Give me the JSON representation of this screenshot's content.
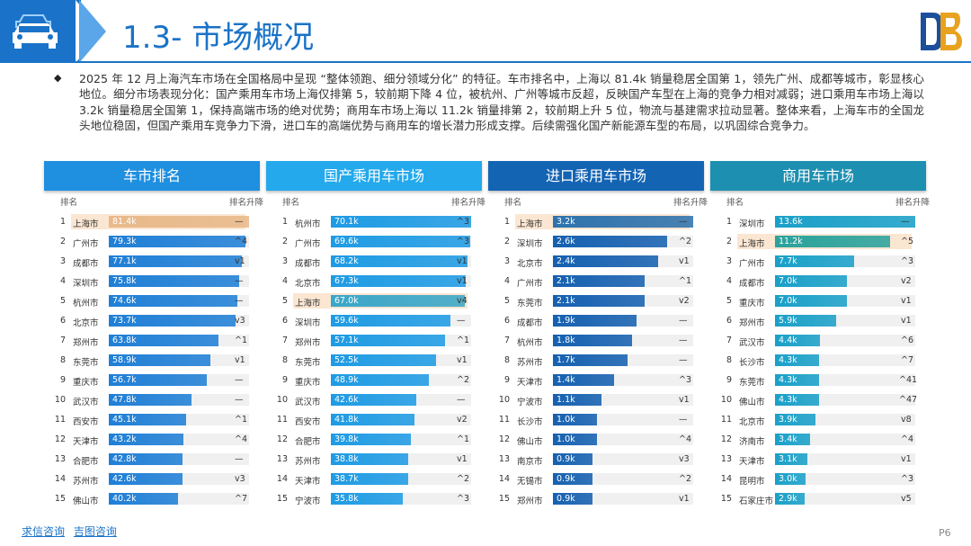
{
  "header": {
    "title": "1.3- 市场概况",
    "logo_text": "DB"
  },
  "summary": {
    "bullet": "◆",
    "text": "2025 年 12 月上海汽车市场在全国格局中呈现 “整体领跑、细分领域分化” 的特征。车市排名中，上海以 81.4k 销量稳居全国第 1，领先广州、成都等城市，彰显核心地位。细分市场表现分化：国产乘用车市场上海仅排第 5，较前期下降 4 位，被杭州、广州等城市反超，反映国产车型在上海的竞争力相对减弱；进口乘用车市场上海以 3.2k 销量稳居全国第 1，保持高端市场的绝对优势；商用车市场上海以 11.2k 销量排第 2，较前期上升 5 位，物流与基建需求拉动显著。整体来看，上海车市的全国龙头地位稳固，但国产乘用车竞争力下滑，进口车的高端优势与商用车的增长潜力形成支撑。后续需强化国产新能源车型的布局，以巩固综合竞争力。"
  },
  "colors": {
    "brand_blue": "#1a73c8",
    "highlight": "#fbe6d2"
  },
  "panels": [
    {
      "title": "车市排名",
      "head_color": "#1f8fe0",
      "bar_color": "#1f7fd6",
      "hl_bar_color": "#e8b98a",
      "col_rank": "排名",
      "col_change": "排名升降",
      "max": 81.4,
      "rows": [
        {
          "rank": "1",
          "city": "上海市",
          "label": "81.4k",
          "value": 81.4,
          "change": "—",
          "hl": true
        },
        {
          "rank": "2",
          "city": "广州市",
          "label": "79.3k",
          "value": 79.3,
          "change": "^4"
        },
        {
          "rank": "3",
          "city": "成都市",
          "label": "77.1k",
          "value": 77.1,
          "change": "v1"
        },
        {
          "rank": "4",
          "city": "深圳市",
          "label": "75.8k",
          "value": 75.8,
          "change": "—"
        },
        {
          "rank": "5",
          "city": "杭州市",
          "label": "74.6k",
          "value": 74.6,
          "change": "—"
        },
        {
          "rank": "6",
          "city": "北京市",
          "label": "73.7k",
          "value": 73.7,
          "change": "v3"
        },
        {
          "rank": "7",
          "city": "郑州市",
          "label": "63.8k",
          "value": 63.8,
          "change": "^1"
        },
        {
          "rank": "8",
          "city": "东莞市",
          "label": "58.9k",
          "value": 58.9,
          "change": "v1"
        },
        {
          "rank": "9",
          "city": "重庆市",
          "label": "56.7k",
          "value": 56.7,
          "change": "—"
        },
        {
          "rank": "10",
          "city": "武汉市",
          "label": "47.8k",
          "value": 47.8,
          "change": "—"
        },
        {
          "rank": "11",
          "city": "西安市",
          "label": "45.1k",
          "value": 45.1,
          "change": "^1"
        },
        {
          "rank": "12",
          "city": "天津市",
          "label": "43.2k",
          "value": 43.2,
          "change": "^4"
        },
        {
          "rank": "13",
          "city": "合肥市",
          "label": "42.8k",
          "value": 42.8,
          "change": "—"
        },
        {
          "rank": "14",
          "city": "苏州市",
          "label": "42.6k",
          "value": 42.6,
          "change": "v3"
        },
        {
          "rank": "15",
          "city": "佛山市",
          "label": "40.2k",
          "value": 40.2,
          "change": "^7"
        }
      ]
    },
    {
      "title": "国产乘用车市场",
      "head_color": "#23a9ec",
      "bar_color": "#1e9be4",
      "hl_bar_color": "#3aa6c8",
      "col_rank": "排名",
      "col_change": "排名升降",
      "max": 70.1,
      "rows": [
        {
          "rank": "1",
          "city": "杭州市",
          "label": "70.1k",
          "value": 70.1,
          "change": "^3"
        },
        {
          "rank": "2",
          "city": "广州市",
          "label": "69.6k",
          "value": 69.6,
          "change": "^3"
        },
        {
          "rank": "3",
          "city": "成都市",
          "label": "68.2k",
          "value": 68.2,
          "change": "v1"
        },
        {
          "rank": "4",
          "city": "北京市",
          "label": "67.3k",
          "value": 67.3,
          "change": "v1"
        },
        {
          "rank": "5",
          "city": "上海市",
          "label": "67.0k",
          "value": 67.0,
          "change": "v4",
          "hl": true
        },
        {
          "rank": "6",
          "city": "深圳市",
          "label": "59.6k",
          "value": 59.6,
          "change": "—"
        },
        {
          "rank": "7",
          "city": "郑州市",
          "label": "57.1k",
          "value": 57.1,
          "change": "^1"
        },
        {
          "rank": "8",
          "city": "东莞市",
          "label": "52.5k",
          "value": 52.5,
          "change": "v1"
        },
        {
          "rank": "9",
          "city": "重庆市",
          "label": "48.9k",
          "value": 48.9,
          "change": "^2"
        },
        {
          "rank": "10",
          "city": "武汉市",
          "label": "42.6k",
          "value": 42.6,
          "change": "—"
        },
        {
          "rank": "11",
          "city": "西安市",
          "label": "41.8k",
          "value": 41.8,
          "change": "v2"
        },
        {
          "rank": "12",
          "city": "合肥市",
          "label": "39.8k",
          "value": 39.8,
          "change": "^1"
        },
        {
          "rank": "13",
          "city": "苏州市",
          "label": "38.8k",
          "value": 38.8,
          "change": "v1"
        },
        {
          "rank": "14",
          "city": "天津市",
          "label": "38.7k",
          "value": 38.7,
          "change": "^2"
        },
        {
          "rank": "15",
          "city": "宁波市",
          "label": "35.8k",
          "value": 35.8,
          "change": "^3"
        }
      ]
    },
    {
      "title": "进口乘用车市场",
      "head_color": "#1464b4",
      "bar_color": "#1560b0",
      "hl_bar_color": "#2e72ad",
      "col_rank": "排名",
      "col_change": "排名升降",
      "max": 3.2,
      "rows": [
        {
          "rank": "1",
          "city": "上海市",
          "label": "3.2k",
          "value": 3.2,
          "change": "—",
          "hl": true
        },
        {
          "rank": "2",
          "city": "深圳市",
          "label": "2.6k",
          "value": 2.6,
          "change": "^2"
        },
        {
          "rank": "3",
          "city": "北京市",
          "label": "2.4k",
          "value": 2.4,
          "change": "v1"
        },
        {
          "rank": "4",
          "city": "广州市",
          "label": "2.1k",
          "value": 2.1,
          "change": "^1"
        },
        {
          "rank": "5",
          "city": "东莞市",
          "label": "2.1k",
          "value": 2.1,
          "change": "v2"
        },
        {
          "rank": "6",
          "city": "成都市",
          "label": "1.9k",
          "value": 1.9,
          "change": "—"
        },
        {
          "rank": "7",
          "city": "杭州市",
          "label": "1.8k",
          "value": 1.8,
          "change": "—"
        },
        {
          "rank": "8",
          "city": "苏州市",
          "label": "1.7k",
          "value": 1.7,
          "change": "—"
        },
        {
          "rank": "9",
          "city": "天津市",
          "label": "1.4k",
          "value": 1.4,
          "change": "^3"
        },
        {
          "rank": "10",
          "city": "宁波市",
          "label": "1.1k",
          "value": 1.1,
          "change": "v1"
        },
        {
          "rank": "11",
          "city": "长沙市",
          "label": "1.0k",
          "value": 1.0,
          "change": "—"
        },
        {
          "rank": "12",
          "city": "佛山市",
          "label": "1.0k",
          "value": 1.0,
          "change": "^4"
        },
        {
          "rank": "13",
          "city": "南京市",
          "label": "0.9k",
          "value": 0.9,
          "change": "v3"
        },
        {
          "rank": "14",
          "city": "无锡市",
          "label": "0.9k",
          "value": 0.9,
          "change": "^2"
        },
        {
          "rank": "15",
          "city": "郑州市",
          "label": "0.9k",
          "value": 0.9,
          "change": "v1"
        }
      ]
    },
    {
      "title": "商用车市场",
      "head_color": "#1d8fb0",
      "bar_color": "#1aa0c8",
      "hl_bar_color": "#2aa29c",
      "col_rank": "排名",
      "col_change": "排名升降",
      "max": 13.6,
      "rows": [
        {
          "rank": "1",
          "city": "深圳市",
          "label": "13.6k",
          "value": 13.6,
          "change": "—"
        },
        {
          "rank": "2",
          "city": "上海市",
          "label": "11.2k",
          "value": 11.2,
          "change": "^5",
          "hl": true
        },
        {
          "rank": "3",
          "city": "广州市",
          "label": "7.7k",
          "value": 7.7,
          "change": "^3"
        },
        {
          "rank": "4",
          "city": "成都市",
          "label": "7.0k",
          "value": 7.0,
          "change": "v2"
        },
        {
          "rank": "5",
          "city": "重庆市",
          "label": "7.0k",
          "value": 7.0,
          "change": "v1"
        },
        {
          "rank": "6",
          "city": "郑州市",
          "label": "5.9k",
          "value": 5.9,
          "change": "v1"
        },
        {
          "rank": "7",
          "city": "武汉市",
          "label": "4.4k",
          "value": 4.4,
          "change": "^6"
        },
        {
          "rank": "8",
          "city": "长沙市",
          "label": "4.3k",
          "value": 4.3,
          "change": "^7"
        },
        {
          "rank": "9",
          "city": "东莞市",
          "label": "4.3k",
          "value": 4.3,
          "change": "^41"
        },
        {
          "rank": "10",
          "city": "佛山市",
          "label": "4.3k",
          "value": 4.3,
          "change": "^47"
        },
        {
          "rank": "11",
          "city": "北京市",
          "label": "3.9k",
          "value": 3.9,
          "change": "v8"
        },
        {
          "rank": "12",
          "city": "济南市",
          "label": "3.4k",
          "value": 3.4,
          "change": "^4"
        },
        {
          "rank": "13",
          "city": "天津市",
          "label": "3.1k",
          "value": 3.1,
          "change": "v1"
        },
        {
          "rank": "14",
          "city": "昆明市",
          "label": "3.0k",
          "value": 3.0,
          "change": "^3"
        },
        {
          "rank": "15",
          "city": "石家庄市",
          "label": "2.9k",
          "value": 2.9,
          "change": "v5"
        }
      ]
    }
  ],
  "footer": {
    "link1": "求信咨询",
    "link2": "吉图咨询",
    "page": "P6"
  }
}
